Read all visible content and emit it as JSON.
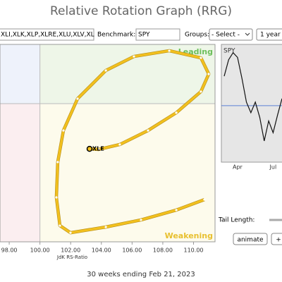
{
  "header": {
    "title": "Relative Rotation Graph (RRG)"
  },
  "controls": {
    "symbols": "XLI,XLK,XLP,XLRE,XLU,XLV,XL",
    "benchmark_label": "Benchmark:",
    "benchmark": "SPY",
    "groups_label": "Groups:",
    "groups": "- Select -",
    "period": "1 year",
    "tail_label": "Tail Length:",
    "animate": "animate",
    "plus": "+"
  },
  "chart_data": [
    {
      "type": "line",
      "x_label": "JdK RS-Ratio",
      "quadrants": {
        "leading": "Leading",
        "weakening": "Weakening"
      },
      "xlim": [
        97.4,
        111.4
      ],
      "ylim": [
        93,
        103
      ],
      "xticks": [
        {
          "value": 98,
          "label": "98.00"
        },
        {
          "value": 100,
          "label": "100.00"
        },
        {
          "value": 102,
          "label": "102.00"
        },
        {
          "value": 104,
          "label": "104.00"
        },
        {
          "value": 106,
          "label": "106.00"
        },
        {
          "value": 108,
          "label": "108.00"
        },
        {
          "value": 110,
          "label": "110.00"
        }
      ],
      "series": [
        {
          "name": "XLE",
          "color": "#f2c01e",
          "x": [
            110.71,
            108.88,
            106.58,
            104.29,
            101.99,
            101.3,
            101.07,
            101.16,
            101.53,
            102.45,
            104.29,
            106.12,
            108.42,
            110.48,
            110.99,
            110.48,
            108.88,
            107.04,
            105.2,
            103.83,
            103.23
          ],
          "values": [
            95.14,
            94.61,
            94.11,
            93.75,
            93.46,
            93.82,
            95.25,
            97.04,
            98.64,
            100.25,
            101.68,
            102.39,
            102.68,
            102.32,
            101.5,
            100.61,
            99.54,
            98.64,
            97.93,
            97.68,
            97.71
          ]
        }
      ]
    },
    {
      "type": "line",
      "title": "SPY",
      "ylim": [
        0,
        100
      ],
      "reference": 48,
      "categories": [
        null,
        null,
        null,
        "Apr",
        null,
        null,
        null,
        null,
        null,
        null,
        null,
        "Jul",
        null,
        null
      ],
      "values": [
        73,
        87,
        93,
        89,
        71,
        51,
        42,
        51,
        38,
        18,
        35,
        25,
        40,
        54
      ]
    }
  ],
  "footer": "30 weeks ending Feb 21, 2023"
}
